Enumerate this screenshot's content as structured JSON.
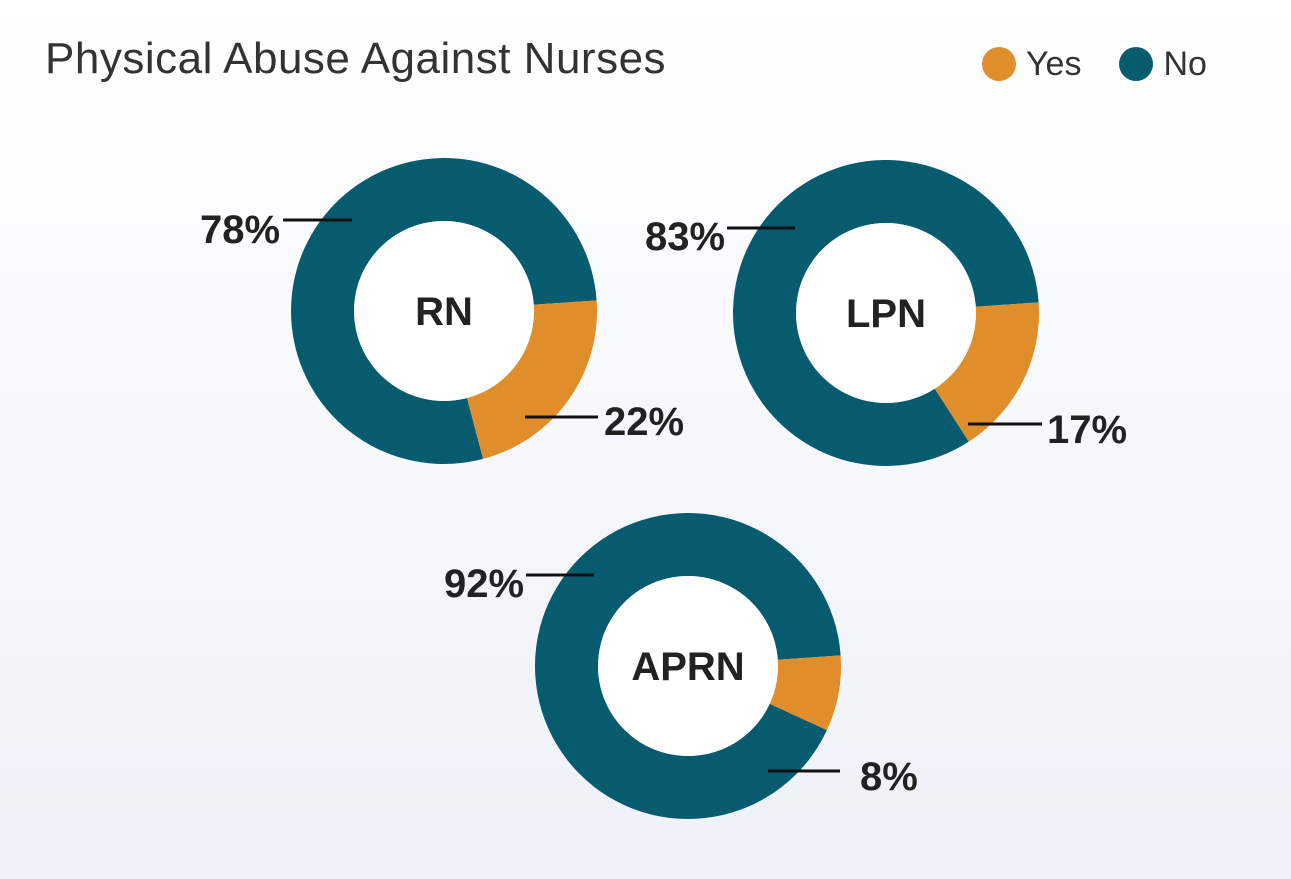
{
  "chart_data": {
    "type": "pie",
    "title": "Physical Abuse Against Nurses",
    "legend": [
      {
        "name": "Yes",
        "color": "#e08e2b"
      },
      {
        "name": "No",
        "color": "#075b6f"
      }
    ],
    "charts": [
      {
        "name": "RN",
        "yes": 22,
        "no": 78,
        "yes_label": "22%",
        "no_label": "78%"
      },
      {
        "name": "LPN",
        "yes": 17,
        "no": 83,
        "yes_label": "17%",
        "no_label": "83%"
      },
      {
        "name": "APRN",
        "yes": 8,
        "no": 92,
        "yes_label": "8%",
        "no_label": "92%"
      }
    ]
  }
}
